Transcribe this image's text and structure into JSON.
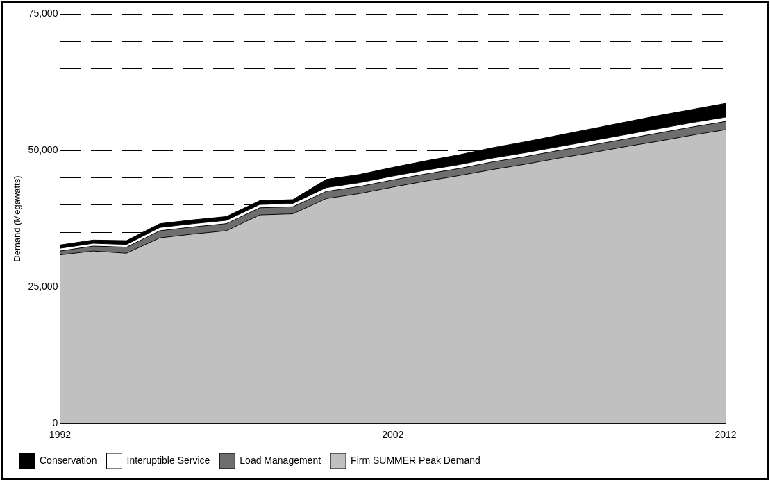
{
  "chart_data": {
    "type": "area",
    "stacked": true,
    "ylabel": "Demand (Megawatts)",
    "x": [
      1992,
      1993,
      1994,
      1995,
      1996,
      1997,
      1998,
      1999,
      2000,
      2001,
      2002,
      2003,
      2004,
      2005,
      2006,
      2007,
      2008,
      2009,
      2010,
      2011,
      2012
    ],
    "xlim": [
      1992,
      2012
    ],
    "xticks": [
      1992,
      2002,
      2012
    ],
    "ylim": [
      0,
      75000
    ],
    "yticks": [
      {
        "value": 0,
        "label": "0"
      },
      {
        "value": 25000,
        "label": "25,000"
      },
      {
        "value": 35000,
        "label": null
      },
      {
        "value": 40000,
        "label": null
      },
      {
        "value": 45000,
        "label": null
      },
      {
        "value": 50000,
        "label": "50,000"
      },
      {
        "value": 55000,
        "label": null
      },
      {
        "value": 60000,
        "label": null
      },
      {
        "value": 65000,
        "label": null
      },
      {
        "value": 70000,
        "label": null
      },
      {
        "value": 75000,
        "label": "75,000"
      }
    ],
    "grid": "y",
    "legend": "bottom",
    "series": [
      {
        "name": "Firm SUMMER Peak Demand",
        "color": "#c0c0c0",
        "values": [
          30900,
          31600,
          31200,
          34000,
          34700,
          35300,
          38200,
          38400,
          41200,
          42100,
          43300,
          44400,
          45400,
          46500,
          47500,
          48600,
          49600,
          50700,
          51700,
          52800,
          53800
        ]
      },
      {
        "name": "Load Management",
        "color": "#6e6e6e",
        "values": [
          700,
          900,
          1100,
          1300,
          1300,
          1300,
          1300,
          1300,
          1300,
          1300,
          1300,
          1300,
          1300,
          1400,
          1400,
          1400,
          1400,
          1400,
          1500,
          1500,
          1500
        ]
      },
      {
        "name": "Interuptible Service",
        "color": "#ffffff",
        "values": [
          500,
          500,
          500,
          600,
          600,
          600,
          600,
          600,
          700,
          700,
          700,
          700,
          700,
          700,
          700,
          700,
          800,
          800,
          800,
          800,
          800
        ]
      },
      {
        "name": "Conservation",
        "color": "#000000",
        "values": [
          600,
          600,
          700,
          700,
          700,
          700,
          700,
          700,
          1500,
          1500,
          1600,
          1700,
          1800,
          1900,
          2000,
          2100,
          2200,
          2300,
          2400,
          2400,
          2500
        ]
      }
    ]
  }
}
